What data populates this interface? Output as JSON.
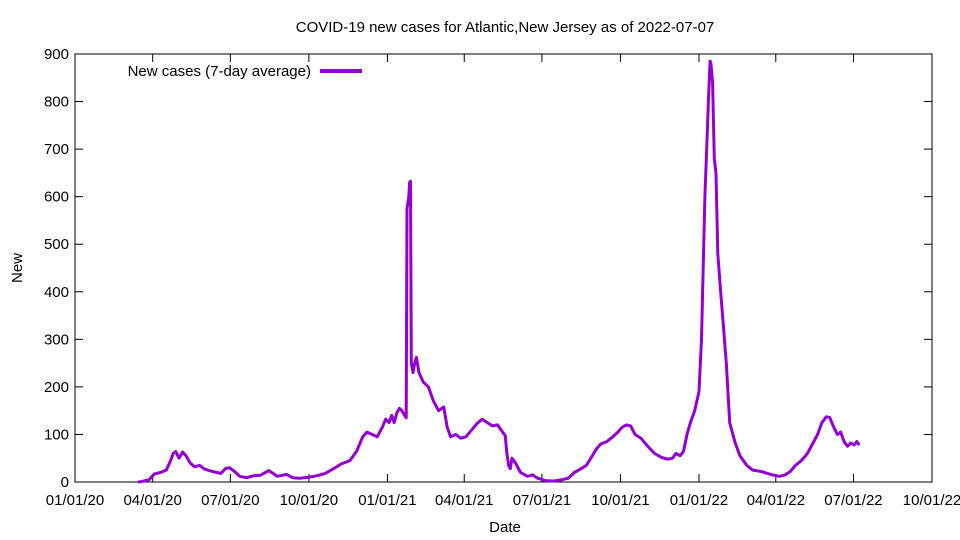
{
  "chart_data": {
    "type": "line",
    "title": "COVID-19 new cases for Atlantic,New Jersey as of 2022-07-07",
    "xlabel": "Date",
    "ylabel": "New",
    "xlim": [
      "2020-01-01",
      "2022-10-01"
    ],
    "ylim": [
      0,
      900
    ],
    "x_tick_labels": [
      "01/01/20",
      "04/01/20",
      "07/01/20",
      "10/01/20",
      "01/01/21",
      "04/01/21",
      "07/01/21",
      "10/01/21",
      "01/01/22",
      "04/01/22",
      "07/01/22",
      "10/01/22"
    ],
    "y_tick_labels": [
      "0",
      "100",
      "200",
      "300",
      "400",
      "500",
      "600",
      "700",
      "800",
      "900"
    ],
    "grid": false,
    "legend_position": "top-left",
    "series": [
      {
        "name": "New cases (7-day average)",
        "color": "#9400d3",
        "points": [
          [
            "2020-03-16",
            0
          ],
          [
            "2020-03-22",
            2
          ],
          [
            "2020-03-28",
            5
          ],
          [
            "2020-04-03",
            17
          ],
          [
            "2020-04-10",
            20
          ],
          [
            "2020-04-17",
            25
          ],
          [
            "2020-04-22",
            45
          ],
          [
            "2020-04-25",
            60
          ],
          [
            "2020-04-28",
            64
          ],
          [
            "2020-05-02",
            50
          ],
          [
            "2020-05-06",
            63
          ],
          [
            "2020-05-10",
            55
          ],
          [
            "2020-05-15",
            40
          ],
          [
            "2020-05-20",
            32
          ],
          [
            "2020-05-26",
            35
          ],
          [
            "2020-06-01",
            27
          ],
          [
            "2020-06-10",
            22
          ],
          [
            "2020-06-20",
            18
          ],
          [
            "2020-06-25",
            28
          ],
          [
            "2020-06-30",
            30
          ],
          [
            "2020-07-06",
            22
          ],
          [
            "2020-07-12",
            12
          ],
          [
            "2020-07-20",
            9
          ],
          [
            "2020-07-28",
            13
          ],
          [
            "2020-08-05",
            14
          ],
          [
            "2020-08-15",
            24
          ],
          [
            "2020-08-25",
            12
          ],
          [
            "2020-09-05",
            16
          ],
          [
            "2020-09-12",
            9
          ],
          [
            "2020-09-20",
            8
          ],
          [
            "2020-10-01",
            10
          ],
          [
            "2020-10-10",
            13
          ],
          [
            "2020-10-20",
            18
          ],
          [
            "2020-10-30",
            28
          ],
          [
            "2020-11-08",
            38
          ],
          [
            "2020-11-18",
            45
          ],
          [
            "2020-11-26",
            65
          ],
          [
            "2020-12-03",
            95
          ],
          [
            "2020-12-08",
            105
          ],
          [
            "2020-12-14",
            100
          ],
          [
            "2020-12-20",
            95
          ],
          [
            "2020-12-26",
            115
          ],
          [
            "2020-12-30",
            132
          ],
          [
            "2021-01-03",
            125
          ],
          [
            "2021-01-06",
            140
          ],
          [
            "2021-01-09",
            125
          ],
          [
            "2021-01-12",
            145
          ],
          [
            "2021-01-15",
            155
          ],
          [
            "2021-01-18",
            150
          ],
          [
            "2021-01-21",
            140
          ],
          [
            "2021-01-23",
            135
          ],
          [
            "2021-01-24",
            575
          ],
          [
            "2021-01-26",
            600
          ],
          [
            "2021-01-27",
            630
          ],
          [
            "2021-01-28",
            632
          ],
          [
            "2021-01-29",
            250
          ],
          [
            "2021-01-31",
            230
          ],
          [
            "2021-02-02",
            250
          ],
          [
            "2021-02-04",
            262
          ],
          [
            "2021-02-07",
            230
          ],
          [
            "2021-02-12",
            210
          ],
          [
            "2021-02-18",
            200
          ],
          [
            "2021-02-24",
            170
          ],
          [
            "2021-03-02",
            150
          ],
          [
            "2021-03-08",
            158
          ],
          [
            "2021-03-12",
            115
          ],
          [
            "2021-03-16",
            95
          ],
          [
            "2021-03-22",
            100
          ],
          [
            "2021-03-28",
            92
          ],
          [
            "2021-04-03",
            95
          ],
          [
            "2021-04-10",
            110
          ],
          [
            "2021-04-16",
            123
          ],
          [
            "2021-04-22",
            132
          ],
          [
            "2021-04-28",
            125
          ],
          [
            "2021-05-04",
            118
          ],
          [
            "2021-05-10",
            120
          ],
          [
            "2021-05-16",
            105
          ],
          [
            "2021-05-19",
            98
          ],
          [
            "2021-05-21",
            60
          ],
          [
            "2021-05-23",
            35
          ],
          [
            "2021-05-25",
            28
          ],
          [
            "2021-05-27",
            50
          ],
          [
            "2021-05-31",
            40
          ],
          [
            "2021-06-06",
            20
          ],
          [
            "2021-06-14",
            12
          ],
          [
            "2021-06-20",
            15
          ],
          [
            "2021-06-26",
            8
          ],
          [
            "2021-07-05",
            3
          ],
          [
            "2021-07-15",
            2
          ],
          [
            "2021-07-25",
            5
          ],
          [
            "2021-08-01",
            8
          ],
          [
            "2021-08-08",
            20
          ],
          [
            "2021-08-15",
            27
          ],
          [
            "2021-08-22",
            35
          ],
          [
            "2021-08-29",
            55
          ],
          [
            "2021-09-03",
            70
          ],
          [
            "2021-09-08",
            80
          ],
          [
            "2021-09-15",
            85
          ],
          [
            "2021-09-22",
            95
          ],
          [
            "2021-09-28",
            105
          ],
          [
            "2021-10-03",
            115
          ],
          [
            "2021-10-08",
            120
          ],
          [
            "2021-10-13",
            118
          ],
          [
            "2021-10-18",
            100
          ],
          [
            "2021-10-25",
            92
          ],
          [
            "2021-11-02",
            75
          ],
          [
            "2021-11-10",
            60
          ],
          [
            "2021-11-18",
            52
          ],
          [
            "2021-11-25",
            48
          ],
          [
            "2021-12-01",
            50
          ],
          [
            "2021-12-05",
            60
          ],
          [
            "2021-12-10",
            55
          ],
          [
            "2021-12-14",
            65
          ],
          [
            "2021-12-18",
            100
          ],
          [
            "2021-12-22",
            125
          ],
          [
            "2021-12-27",
            150
          ],
          [
            "2022-01-01",
            190
          ],
          [
            "2022-01-04",
            300
          ],
          [
            "2022-01-06",
            450
          ],
          [
            "2022-01-08",
            600
          ],
          [
            "2022-01-10",
            700
          ],
          [
            "2022-01-12",
            800
          ],
          [
            "2022-01-14",
            885
          ],
          [
            "2022-01-15",
            880
          ],
          [
            "2022-01-17",
            840
          ],
          [
            "2022-01-19",
            680
          ],
          [
            "2022-01-21",
            650
          ],
          [
            "2022-01-23",
            480
          ],
          [
            "2022-01-26",
            410
          ],
          [
            "2022-01-30",
            320
          ],
          [
            "2022-02-02",
            250
          ],
          [
            "2022-02-06",
            125
          ],
          [
            "2022-02-12",
            85
          ],
          [
            "2022-02-18",
            55
          ],
          [
            "2022-02-26",
            35
          ],
          [
            "2022-03-05",
            25
          ],
          [
            "2022-03-15",
            22
          ],
          [
            "2022-03-22",
            18
          ],
          [
            "2022-03-30",
            14
          ],
          [
            "2022-04-05",
            12
          ],
          [
            "2022-04-12",
            15
          ],
          [
            "2022-04-18",
            22
          ],
          [
            "2022-04-24",
            35
          ],
          [
            "2022-05-01",
            45
          ],
          [
            "2022-05-08",
            60
          ],
          [
            "2022-05-14",
            80
          ],
          [
            "2022-05-20",
            100
          ],
          [
            "2022-05-25",
            125
          ],
          [
            "2022-05-30",
            137
          ],
          [
            "2022-06-03",
            136
          ],
          [
            "2022-06-08",
            115
          ],
          [
            "2022-06-12",
            100
          ],
          [
            "2022-06-16",
            105
          ],
          [
            "2022-06-20",
            85
          ],
          [
            "2022-06-24",
            75
          ],
          [
            "2022-06-28",
            82
          ],
          [
            "2022-07-02",
            78
          ],
          [
            "2022-07-05",
            85
          ],
          [
            "2022-07-07",
            80
          ]
        ]
      }
    ]
  }
}
